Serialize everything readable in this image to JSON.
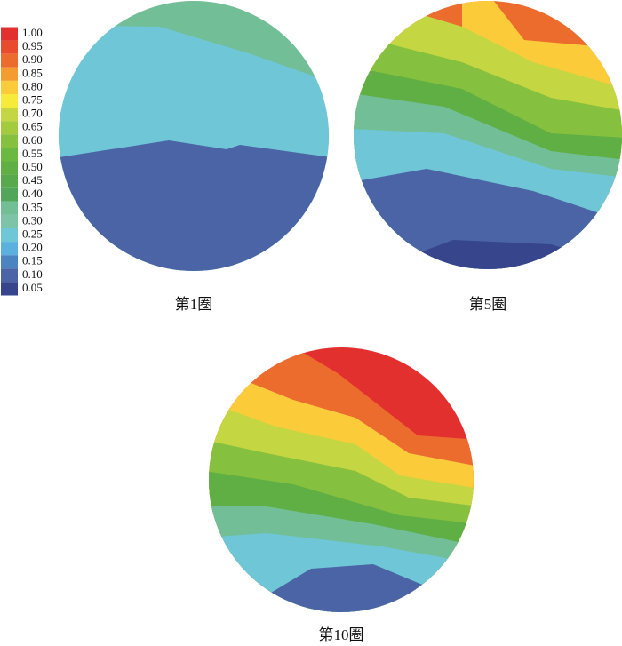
{
  "legend": {
    "levels": [
      {
        "value": 1,
        "label": "1.00"
      },
      0.95,
      {
        "value": 0.9,
        "label": "0.90"
      },
      0.85,
      {
        "value": 0.8,
        "label": "0.80"
      },
      0.75,
      {
        "value": 0.7,
        "label": "0.70"
      },
      0.65,
      {
        "value": 0.6,
        "label": "0.60"
      },
      0.55,
      {
        "value": 0.5,
        "label": "0.50"
      },
      0.45,
      {
        "value": 0.4,
        "label": "0.40"
      },
      0.35,
      {
        "value": 0.3,
        "label": "0.30"
      },
      0.25,
      {
        "value": 0.2,
        "label": "0.20"
      },
      0.15,
      {
        "value": 0.1,
        "label": "0.10"
      },
      0.05
    ],
    "colors": [
      "#e2302f",
      "#e84b2e",
      "#ec6c2e",
      "#f59c31",
      "#fbcb3a",
      "#f6ea3a",
      "#c4d642",
      "#a4cb3d",
      "#86c03f",
      "#6cb941",
      "#5faf45",
      "#58a94b",
      "#52a65a",
      "#72be96",
      "#7cc3a8",
      "#6ec6d6",
      "#5bb0e0",
      "#4c84c2",
      "#4a64a6",
      "#36458c"
    ]
  },
  "panels": [
    {
      "caption": "第1圈"
    },
    {
      "caption": "第5圈"
    },
    {
      "caption": "第10圈"
    }
  ]
}
